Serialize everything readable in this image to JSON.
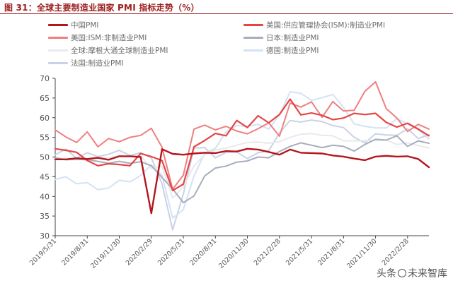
{
  "figure": {
    "title": "图 31：全球主要制造业国家 PMI 指标走势（%）"
  },
  "watermark": {
    "prefix": "头条",
    "suffix": "未来智库"
  },
  "chart_data": {
    "type": "line",
    "title": "图 31：全球主要制造业国家 PMI 指标走势（%）",
    "ylim": [
      30,
      70
    ],
    "yticks": [
      30,
      35,
      40,
      45,
      50,
      55,
      60,
      65,
      70
    ],
    "xticks": [
      "2019/5/31",
      "2019/8/31",
      "2019/11/30",
      "2020/2/29",
      "2020/5/31",
      "2020/8/31",
      "2020/11/30",
      "2021/2/28",
      "2021/5/31",
      "2021/8/31",
      "2021/11/30",
      "2022/2/28"
    ],
    "x": [
      "2019/5",
      "2019/6",
      "2019/7",
      "2019/8",
      "2019/9",
      "2019/10",
      "2019/11",
      "2019/12",
      "2020/1",
      "2020/2",
      "2020/3",
      "2020/4",
      "2020/5",
      "2020/6",
      "2020/7",
      "2020/8",
      "2020/9",
      "2020/10",
      "2020/11",
      "2020/12",
      "2021/1",
      "2021/2",
      "2021/3",
      "2021/4",
      "2021/5",
      "2021/6",
      "2021/7",
      "2021/8",
      "2021/9",
      "2021/10",
      "2021/11",
      "2021/12",
      "2022/1",
      "2022/2",
      "2022/3",
      "2022/4"
    ],
    "grid": false,
    "legend_position": "top",
    "series": [
      {
        "name": "中国PMI",
        "color": "#b3161c",
        "width": 2.4,
        "values": [
          49.4,
          49.4,
          49.7,
          49.5,
          49.8,
          49.3,
          50.2,
          50.2,
          50.0,
          35.7,
          52.0,
          50.8,
          50.6,
          50.9,
          51.1,
          51.0,
          51.5,
          51.4,
          52.1,
          51.9,
          51.3,
          50.6,
          51.9,
          51.1,
          51.0,
          50.9,
          50.4,
          50.1,
          49.6,
          49.2,
          50.1,
          50.3,
          50.1,
          50.2,
          49.5,
          47.4
        ]
      },
      {
        "name": "美国:供应管理协会(ISM):制造业PMI",
        "color": "#e64545",
        "width": 2.2,
        "values": [
          52.1,
          51.7,
          51.2,
          49.1,
          47.8,
          48.3,
          48.1,
          47.8,
          50.9,
          50.1,
          49.1,
          41.5,
          43.1,
          52.6,
          54.2,
          56.0,
          55.4,
          59.3,
          57.5,
          60.5,
          58.7,
          60.8,
          64.7,
          60.7,
          61.2,
          60.6,
          59.5,
          59.9,
          61.1,
          60.8,
          61.1,
          58.8,
          57.6,
          58.6,
          57.1,
          55.4
        ]
      },
      {
        "name": "美国:ISM:非制造业PMI",
        "color": "#f07f7f",
        "width": 2.0,
        "values": [
          56.9,
          55.1,
          53.7,
          56.4,
          52.6,
          54.7,
          53.9,
          55.0,
          55.5,
          57.3,
          52.5,
          41.8,
          45.4,
          57.1,
          58.1,
          56.9,
          57.8,
          56.6,
          55.9,
          57.2,
          58.7,
          55.3,
          63.7,
          62.7,
          64.0,
          60.1,
          64.1,
          61.7,
          61.9,
          66.7,
          69.1,
          62.3,
          59.9,
          56.5,
          58.3,
          57.1
        ]
      },
      {
        "name": "日本:制造业PMI",
        "color": "#a6adbd",
        "width": 2.0,
        "values": [
          49.8,
          49.3,
          49.4,
          49.3,
          48.9,
          48.4,
          48.9,
          48.4,
          48.8,
          47.8,
          44.8,
          41.9,
          38.4,
          40.1,
          45.2,
          47.2,
          47.7,
          48.7,
          49.0,
          50.0,
          49.8,
          51.4,
          52.7,
          53.6,
          53.0,
          52.4,
          53.0,
          52.7,
          51.5,
          53.2,
          54.5,
          54.3,
          55.4,
          52.7,
          54.1,
          53.5
        ]
      },
      {
        "name": "全球:摩根大通全球制造业PMI",
        "color": "#e9e9ee",
        "width": 2.0,
        "values": [
          49.8,
          49.4,
          49.3,
          49.5,
          49.7,
          49.8,
          50.3,
          50.1,
          50.4,
          47.1,
          47.6,
          39.6,
          42.4,
          47.8,
          50.6,
          51.8,
          52.3,
          53.0,
          53.7,
          53.8,
          53.5,
          53.9,
          55.0,
          55.8,
          56.0,
          55.5,
          55.4,
          54.1,
          54.1,
          54.2,
          54.2,
          54.3,
          53.2,
          53.6,
          52.9,
          52.3
        ]
      },
      {
        "name": "德国:制造业PMI",
        "color": "#d3e2f5",
        "width": 2.0,
        "values": [
          44.3,
          45.0,
          43.2,
          43.5,
          41.7,
          42.1,
          44.1,
          43.7,
          45.3,
          48.0,
          45.4,
          34.5,
          36.6,
          45.2,
          51.0,
          52.2,
          56.4,
          58.0,
          57.8,
          58.3,
          57.1,
          60.7,
          66.6,
          66.2,
          64.4,
          65.1,
          65.9,
          62.6,
          58.4,
          57.8,
          57.4,
          57.4,
          59.8,
          58.4,
          56.9,
          54.6
        ]
      },
      {
        "name": "法国:制造业PMI",
        "color": "#c9d2e6",
        "width": 2.0,
        "values": [
          50.6,
          52.0,
          49.7,
          51.1,
          50.1,
          50.7,
          51.7,
          50.4,
          51.1,
          49.8,
          43.2,
          31.5,
          40.6,
          52.3,
          52.4,
          49.8,
          51.2,
          51.3,
          49.6,
          51.1,
          51.6,
          56.1,
          59.3,
          58.9,
          59.4,
          59.0,
          58.0,
          57.5,
          55.0,
          53.6,
          55.9,
          55.6,
          55.5,
          57.2,
          54.7,
          55.7
        ]
      }
    ]
  }
}
